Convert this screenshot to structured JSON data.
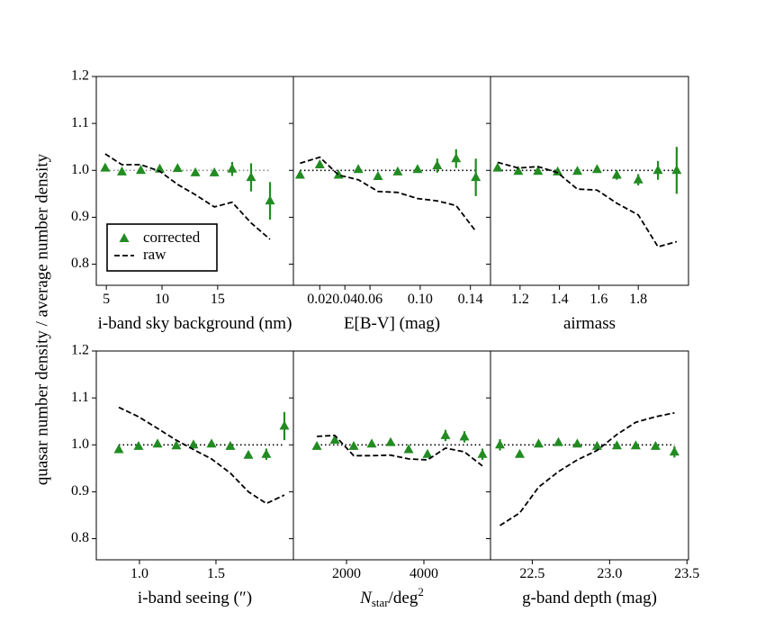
{
  "y_axis": {
    "label": "quasar number density / average number density",
    "ylim": [
      0.755,
      1.2
    ],
    "yticks": [
      0.8,
      0.9,
      {
        "value": 1.0,
        "label": "1.0"
      },
      1.1,
      1.2
    ]
  },
  "chart_data": [
    {
      "type": "line",
      "xlabel": "i-band sky background (nm)",
      "xlim": [
        4.1,
        21.8
      ],
      "xticks": [
        5,
        10,
        15
      ],
      "hline": 1.0,
      "hline_color": "#888888",
      "legend": "lower left",
      "x": [
        4.9,
        6.4,
        8.1,
        9.8,
        11.4,
        13.0,
        14.7,
        16.3,
        18.0,
        19.7
      ],
      "series": [
        {
          "name": "corrected",
          "color": "#228b22",
          "marker": "triangle",
          "values": [
            1.005,
            0.997,
            1.0,
            1.003,
            1.004,
            0.995,
            0.995,
            1.003,
            0.985,
            0.935
          ],
          "errors": [
            0.005,
            0.005,
            0.005,
            0.005,
            0.006,
            0.006,
            0.008,
            0.015,
            0.03,
            0.04
          ]
        },
        {
          "name": "raw",
          "color": "#000000",
          "marker": "dashed",
          "values": [
            1.035,
            1.012,
            1.012,
            0.998,
            0.97,
            0.948,
            0.922,
            0.932,
            0.888,
            0.853
          ]
        }
      ]
    },
    {
      "type": "line",
      "xlabel": "E[B-V] (mag)",
      "xlim": [
        -0.001,
        0.156
      ],
      "xticks": [
        0.02,
        0.04,
        0.06,
        {
          "value": 0.1,
          "label": "0.10"
        },
        0.14
      ],
      "hline": 1.0,
      "hline_color": "#000000",
      "x": [
        0.0043,
        0.02,
        0.035,
        0.0507,
        0.0664,
        0.0821,
        0.0979,
        0.1136,
        0.1286,
        0.1443
      ],
      "series": [
        {
          "color": "#228b22",
          "marker": "triangle",
          "values": [
            0.99,
            1.012,
            0.99,
            1.002,
            0.987,
            0.997,
            1.002,
            1.01,
            1.025,
            0.985
          ],
          "errors": [
            0.005,
            0.006,
            0.005,
            0.005,
            0.005,
            0.006,
            0.007,
            0.015,
            0.02,
            0.04
          ]
        },
        {
          "color": "#000000",
          "marker": "dashed",
          "values": [
            1.015,
            1.028,
            0.99,
            0.98,
            0.955,
            0.953,
            0.94,
            0.935,
            0.925,
            0.87
          ]
        }
      ]
    },
    {
      "type": "line",
      "xlabel": "airmass",
      "xlim": [
        1.05,
        2.055
      ],
      "xticks": [
        1.2,
        1.4,
        1.6,
        1.8
      ],
      "hline": 1.0,
      "hline_color": "#000000",
      "x": [
        1.086,
        1.191,
        1.291,
        1.391,
        1.491,
        1.591,
        1.691,
        1.8,
        1.9,
        1.995
      ],
      "series": [
        {
          "color": "#228b22",
          "marker": "triangle",
          "values": [
            1.005,
            0.998,
            0.998,
            0.997,
            0.998,
            1.002,
            0.99,
            0.98,
            1.0,
            1.0
          ],
          "errors": [
            0.005,
            0.005,
            0.005,
            0.005,
            0.005,
            0.006,
            0.01,
            0.012,
            0.02,
            0.05
          ]
        },
        {
          "color": "#000000",
          "marker": "dashed",
          "values": [
            1.017,
            1.005,
            1.008,
            0.995,
            0.96,
            0.958,
            0.93,
            0.905,
            0.837,
            0.848
          ]
        }
      ]
    },
    {
      "type": "line",
      "xlabel": "i-band seeing (″)",
      "xlim": [
        0.718,
        2.006
      ],
      "xticks": [
        {
          "value": 1.0,
          "label": "1.0"
        },
        1.5
      ],
      "hline": 1.0,
      "hline_color": "#000000",
      "x": [
        0.865,
        0.994,
        1.118,
        1.241,
        1.353,
        1.471,
        1.594,
        1.712,
        1.829,
        1.947
      ],
      "series": [
        {
          "color": "#228b22",
          "marker": "triangle",
          "values": [
            0.99,
            0.997,
            1.002,
            0.998,
            1.0,
            1.002,
            0.997,
            0.978,
            0.98,
            1.04
          ],
          "errors": [
            0.005,
            0.005,
            0.005,
            0.005,
            0.005,
            0.005,
            0.006,
            0.007,
            0.012,
            0.03
          ]
        },
        {
          "color": "#000000",
          "marker": "dashed",
          "values": [
            1.08,
            1.06,
            1.035,
            1.01,
            0.99,
            0.97,
            0.94,
            0.9,
            0.875,
            0.893
          ]
        }
      ]
    },
    {
      "type": "line",
      "xlabel": {
        "main": "N",
        "sub": "star",
        "mid": "/deg",
        "sup": "2"
      },
      "xlim": [
        627,
        5721
      ],
      "xticks": [
        2000,
        4000
      ],
      "hline": 1.0,
      "hline_color": "#000000",
      "x": [
        1233,
        1698,
        2186,
        2651,
        3140,
        3605,
        4093,
        4558,
        5047,
        5512
      ],
      "series": [
        {
          "color": "#228b22",
          "marker": "triangle",
          "values": [
            0.997,
            1.01,
            0.997,
            1.002,
            1.005,
            0.99,
            0.98,
            1.02,
            1.017,
            0.98
          ],
          "errors": [
            0.005,
            0.006,
            0.005,
            0.005,
            0.006,
            0.006,
            0.007,
            0.012,
            0.012,
            0.012
          ]
        },
        {
          "color": "#000000",
          "marker": "dashed",
          "values": [
            1.018,
            1.02,
            0.977,
            0.977,
            0.978,
            0.97,
            0.968,
            0.993,
            0.985,
            0.955
          ]
        }
      ]
    },
    {
      "type": "line",
      "xlabel": "g-band depth (mag)",
      "xlim": [
        22.23,
        23.51
      ],
      "xticks": [
        22.5,
        {
          "value": 23.0,
          "label": "23.0"
        },
        23.5
      ],
      "hline": 1.0,
      "hline_color": "#000000",
      "x": [
        22.291,
        22.419,
        22.541,
        22.669,
        22.791,
        22.919,
        23.047,
        23.169,
        23.297,
        23.419
      ],
      "series": [
        {
          "color": "#228b22",
          "marker": "triangle",
          "values": [
            1.0,
            0.98,
            1.002,
            1.005,
            1.002,
            0.997,
            0.998,
            0.998,
            0.997,
            0.985
          ],
          "errors": [
            0.012,
            0.006,
            0.005,
            0.005,
            0.005,
            0.005,
            0.005,
            0.005,
            0.006,
            0.012
          ]
        },
        {
          "color": "#000000",
          "marker": "dashed",
          "values": [
            0.828,
            0.855,
            0.91,
            0.943,
            0.968,
            0.988,
            1.022,
            1.048,
            1.06,
            1.068
          ]
        }
      ]
    }
  ]
}
